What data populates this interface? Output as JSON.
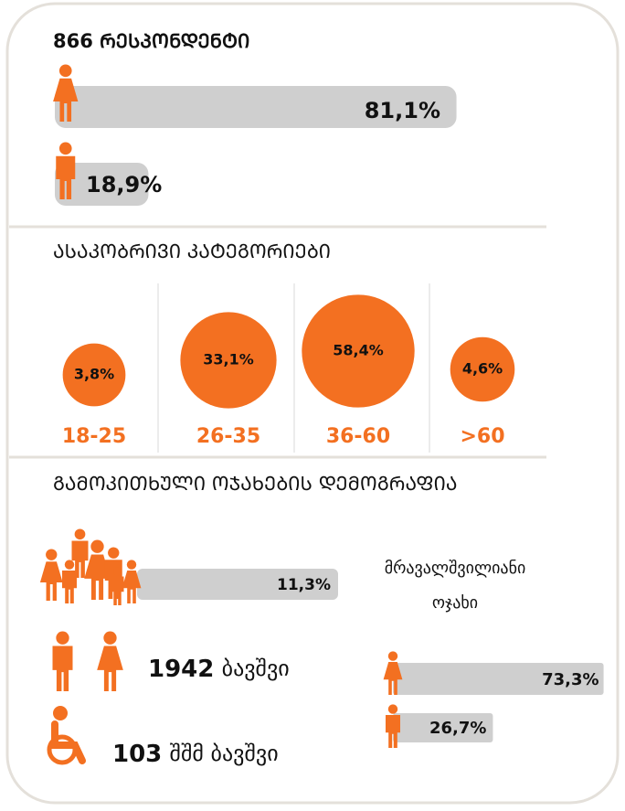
{
  "respondents": {
    "title": "866 ᲠᲔᲡᲞᲝᲜᲓᲔᲜᲢᲘ",
    "female": {
      "value": 81.1,
      "label": "81,1%"
    },
    "male": {
      "value": 18.9,
      "label": "18,9%"
    }
  },
  "age": {
    "title": "ᲐᲡᲐᲙᲝᲑᲠᲘᲕᲘ ᲙᲐᲢᲔᲒᲝᲠᲘᲔᲑᲘ",
    "groups": [
      {
        "name": "18-25",
        "value": 3.8,
        "label": "3,8%"
      },
      {
        "name": "26-35",
        "value": 33.1,
        "label": "33,1%"
      },
      {
        "name": "36-60",
        "value": 58.4,
        "label": "58,4%"
      },
      {
        "name": ">60",
        "value": 4.6,
        "label": "4,6%"
      }
    ]
  },
  "households": {
    "title": "ᲒᲐᲛᲝᲙᲘᲗᲮᲣᲚᲘ ᲝᲯᲐᲮᲔᲑᲘᲡ ᲓᲔᲛᲝᲒᲠᲐᲤᲘᲐ",
    "large_family": {
      "value": 11.3,
      "label": "11,3%",
      "caption": [
        "მრავალშვილიანი",
        "ოჯახი"
      ]
    },
    "children": {
      "count": "1942",
      "text": "ბავშვი"
    },
    "disabled": {
      "count": "103",
      "text": "შშმ ბავშვი"
    },
    "girls": {
      "value": 73.3,
      "label": "73,3%"
    },
    "boys": {
      "value": 26.7,
      "label": "26,7%"
    }
  }
}
